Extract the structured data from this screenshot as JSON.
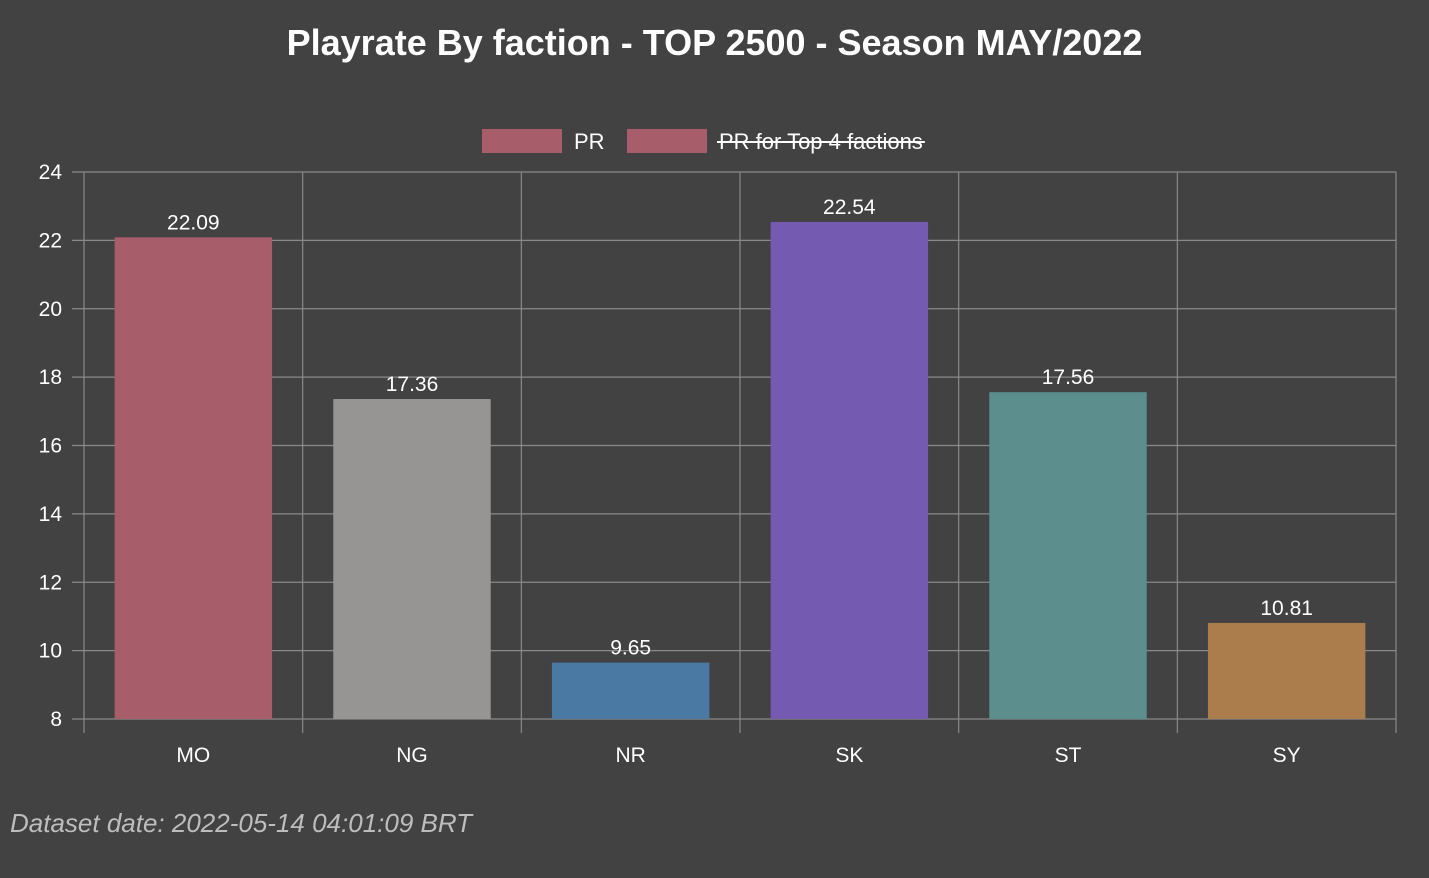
{
  "chart_data": {
    "type": "bar",
    "title": "Playrate By faction - TOP 2500 - Season MAY/2022",
    "xlabel": "",
    "ylabel": "",
    "categories": [
      "MO",
      "NG",
      "NR",
      "SK",
      "ST",
      "SY"
    ],
    "series": [
      {
        "name": "PR",
        "values": [
          22.09,
          17.36,
          9.65,
          22.54,
          17.56,
          10.81
        ],
        "colors": [
          "#a85d6a",
          "#969594",
          "#4a79a4",
          "#745ab0",
          "#5b8e8d",
          "#ab7c4c"
        ]
      },
      {
        "name": "PR for Top 4 factions",
        "hidden": true,
        "legend_color": "#a85d6a"
      }
    ],
    "ylim": [
      8,
      24
    ],
    "yticks": [
      8,
      10,
      12,
      14,
      16,
      18,
      20,
      22,
      24
    ],
    "grid": true,
    "legend_position": "top-center",
    "footnote": "Dataset date: 2022-05-14 04:01:09 BRT"
  }
}
